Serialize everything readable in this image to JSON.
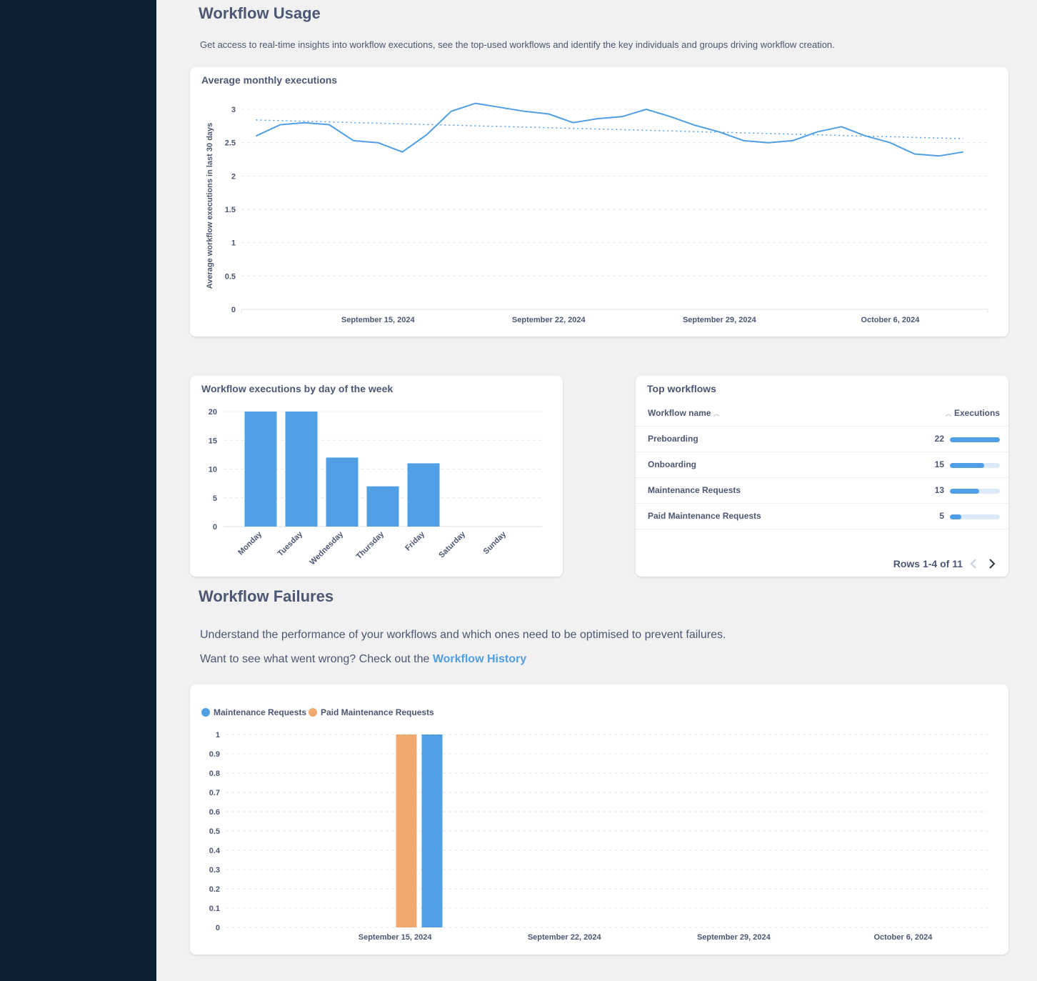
{
  "sections": {
    "usage": {
      "title": "Workflow Usage",
      "description": "Get access to real-time insights into workflow executions, see the top-used workflows and identify the key individuals and groups driving workflow creation."
    },
    "failures": {
      "title": "Workflow Failures",
      "description": "Understand the performance of your workflows and which ones need to be optimised to prevent failures.",
      "history_prefix": "Want to see what went wrong? Check out the",
      "history_link": "Workflow History"
    }
  },
  "top_workflows": {
    "title": "Top workflows",
    "col_name": "Workflow name",
    "col_exec": "Executions",
    "rows": [
      {
        "name": "Preboarding",
        "value": "22",
        "fraction": 1.0
      },
      {
        "name": "Onboarding",
        "value": "15",
        "fraction": 0.68
      },
      {
        "name": "Maintenance Requests",
        "value": "13",
        "fraction": 0.59
      },
      {
        "name": "Paid Maintenance Requests",
        "value": "5",
        "fraction": 0.23
      }
    ],
    "pagination": "Rows 1-4 of 11"
  },
  "colors": {
    "blue": "#509ee3",
    "orange": "#f0a96f",
    "sidebar": "#0d1f30",
    "text": "#4c5773"
  },
  "chart_data": [
    {
      "id": "avg_monthly",
      "type": "line",
      "title": "Average monthly executions",
      "xlabel": "",
      "ylabel": "Average workflow executions in last 30 days",
      "x": [
        "2024-09-10",
        "2024-09-11",
        "2024-09-12",
        "2024-09-13",
        "2024-09-14",
        "2024-09-15",
        "2024-09-16",
        "2024-09-17",
        "2024-09-18",
        "2024-09-19",
        "2024-09-20",
        "2024-09-21",
        "2024-09-22",
        "2024-09-23",
        "2024-09-24",
        "2024-09-25",
        "2024-09-26",
        "2024-09-27",
        "2024-09-28",
        "2024-09-29",
        "2024-09-30",
        "2024-10-01",
        "2024-10-02",
        "2024-10-03",
        "2024-10-04",
        "2024-10-05",
        "2024-10-06",
        "2024-10-07",
        "2024-10-08",
        "2024-10-09"
      ],
      "values": [
        2.6,
        2.77,
        2.8,
        2.77,
        2.53,
        2.5,
        2.36,
        2.62,
        2.97,
        3.09,
        3.03,
        2.97,
        2.93,
        2.8,
        2.86,
        2.89,
        3.0,
        2.89,
        2.76,
        2.66,
        2.53,
        2.5,
        2.53,
        2.66,
        2.74,
        2.6,
        2.5,
        2.33,
        2.3,
        2.36
      ],
      "trend": [
        2.84,
        2.56
      ],
      "ylim": [
        0,
        3
      ],
      "yticks": [
        "0",
        "0.5",
        "1",
        "1.5",
        "2",
        "2.5",
        "3"
      ],
      "xticks": [
        "September 15, 2024",
        "September 22, 2024",
        "September 29, 2024",
        "October 6, 2024"
      ],
      "grid": true
    },
    {
      "id": "by_day",
      "type": "bar",
      "title": "Workflow executions by day of the week",
      "categories": [
        "Monday",
        "Tuesday",
        "Wednesday",
        "Thursday",
        "Friday",
        "Saturday",
        "Sunday"
      ],
      "values": [
        20,
        20,
        12,
        7,
        11,
        0,
        0
      ],
      "ylim": [
        0,
        20
      ],
      "yticks": [
        "0",
        "5",
        "10",
        "15",
        "20"
      ],
      "grid": true
    },
    {
      "id": "failures",
      "type": "bar",
      "title": "",
      "series": [
        {
          "name": "Maintenance Requests",
          "color": "#509ee3",
          "points": [
            {
              "x": "2024-09-16",
              "y": 1
            }
          ]
        },
        {
          "name": "Paid Maintenance Requests",
          "color": "#f0a96f",
          "points": [
            {
              "x": "2024-09-16",
              "y": 1
            }
          ]
        }
      ],
      "ylim": [
        0,
        1
      ],
      "yticks": [
        "0",
        "0.1",
        "0.2",
        "0.3",
        "0.4",
        "0.5",
        "0.6",
        "0.7",
        "0.8",
        "0.9",
        "1"
      ],
      "xticks": [
        "September 15, 2024",
        "September 22, 2024",
        "September 29, 2024",
        "October 6, 2024"
      ],
      "legend": "top-left",
      "grid": true
    }
  ]
}
